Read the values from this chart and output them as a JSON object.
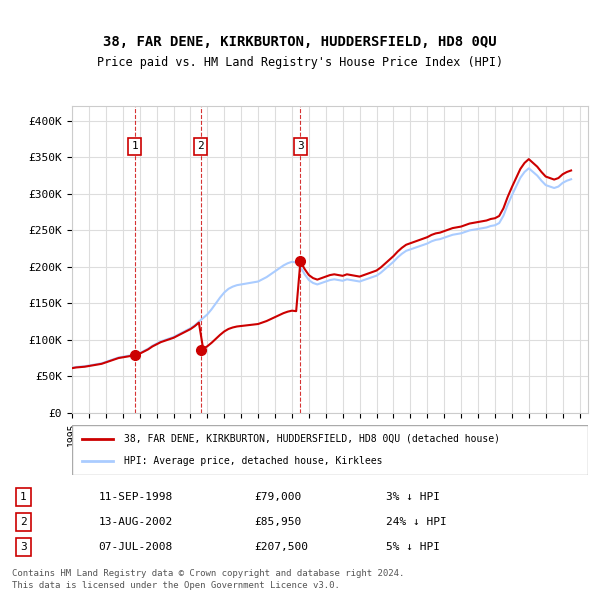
{
  "title_line1": "38, FAR DENE, KIRKBURTON, HUDDERSFIELD, HD8 0QU",
  "title_line2": "Price paid vs. HM Land Registry's House Price Index (HPI)",
  "ylabel": "",
  "background_color": "#ffffff",
  "plot_bg_color": "#ffffff",
  "grid_color": "#dddddd",
  "hpi_line_color": "#aaccff",
  "price_line_color": "#cc0000",
  "purchases": [
    {
      "label": "1",
      "date_str": "11-SEP-1998",
      "price": 79000,
      "hpi_pct": "3%",
      "year": 1998.7
    },
    {
      "label": "2",
      "date_str": "13-AUG-2002",
      "price": 85950,
      "hpi_pct": "24%",
      "year": 2002.6
    },
    {
      "label": "3",
      "date_str": "07-JUL-2008",
      "price": 207500,
      "hpi_pct": "5%",
      "year": 2008.5
    }
  ],
  "legend_label1": "38, FAR DENE, KIRKBURTON, HUDDERSFIELD, HD8 0QU (detached house)",
  "legend_label2": "HPI: Average price, detached house, Kirklees",
  "footer1": "Contains HM Land Registry data © Crown copyright and database right 2024.",
  "footer2": "This data is licensed under the Open Government Licence v3.0.",
  "ylim": [
    0,
    420000
  ],
  "yticks": [
    0,
    50000,
    100000,
    150000,
    200000,
    250000,
    300000,
    350000,
    400000
  ],
  "ytick_labels": [
    "£0",
    "£50K",
    "£100K",
    "£150K",
    "£200K",
    "£250K",
    "£300K",
    "£350K",
    "£400K"
  ],
  "hpi_data": {
    "years": [
      1995.0,
      1995.25,
      1995.5,
      1995.75,
      1996.0,
      1996.25,
      1996.5,
      1996.75,
      1997.0,
      1997.25,
      1997.5,
      1997.75,
      1998.0,
      1998.25,
      1998.5,
      1998.75,
      1999.0,
      1999.25,
      1999.5,
      1999.75,
      2000.0,
      2000.25,
      2000.5,
      2000.75,
      2001.0,
      2001.25,
      2001.5,
      2001.75,
      2002.0,
      2002.25,
      2002.5,
      2002.75,
      2003.0,
      2003.25,
      2003.5,
      2003.75,
      2004.0,
      2004.25,
      2004.5,
      2004.75,
      2005.0,
      2005.25,
      2005.5,
      2005.75,
      2006.0,
      2006.25,
      2006.5,
      2006.75,
      2007.0,
      2007.25,
      2007.5,
      2007.75,
      2008.0,
      2008.25,
      2008.5,
      2008.75,
      2009.0,
      2009.25,
      2009.5,
      2009.75,
      2010.0,
      2010.25,
      2010.5,
      2010.75,
      2011.0,
      2011.25,
      2011.5,
      2011.75,
      2012.0,
      2012.25,
      2012.5,
      2012.75,
      2013.0,
      2013.25,
      2013.5,
      2013.75,
      2014.0,
      2014.25,
      2014.5,
      2014.75,
      2015.0,
      2015.25,
      2015.5,
      2015.75,
      2016.0,
      2016.25,
      2016.5,
      2016.75,
      2017.0,
      2017.25,
      2017.5,
      2017.75,
      2018.0,
      2018.25,
      2018.5,
      2018.75,
      2019.0,
      2019.25,
      2019.5,
      2019.75,
      2020.0,
      2020.25,
      2020.5,
      2020.75,
      2021.0,
      2021.25,
      2021.5,
      2021.75,
      2022.0,
      2022.25,
      2022.5,
      2022.75,
      2023.0,
      2023.25,
      2023.5,
      2023.75,
      2024.0,
      2024.25,
      2024.5
    ],
    "values": [
      62000,
      63000,
      63500,
      64000,
      65000,
      66000,
      67000,
      68000,
      70000,
      72000,
      74000,
      76000,
      77000,
      78000,
      79000,
      80000,
      82000,
      85000,
      88000,
      92000,
      95000,
      98000,
      100000,
      102000,
      104000,
      107000,
      110000,
      113000,
      116000,
      120000,
      125000,
      130000,
      135000,
      142000,
      150000,
      158000,
      165000,
      170000,
      173000,
      175000,
      176000,
      177000,
      178000,
      179000,
      180000,
      183000,
      186000,
      190000,
      194000,
      198000,
      202000,
      205000,
      207000,
      206000,
      200000,
      190000,
      182000,
      178000,
      176000,
      178000,
      180000,
      182000,
      183000,
      182000,
      181000,
      183000,
      182000,
      181000,
      180000,
      182000,
      184000,
      186000,
      188000,
      192000,
      197000,
      202000,
      207000,
      213000,
      218000,
      222000,
      224000,
      226000,
      228000,
      230000,
      232000,
      235000,
      237000,
      238000,
      240000,
      242000,
      244000,
      245000,
      246000,
      248000,
      250000,
      251000,
      252000,
      253000,
      254000,
      256000,
      257000,
      260000,
      270000,
      285000,
      298000,
      310000,
      322000,
      330000,
      335000,
      330000,
      325000,
      318000,
      312000,
      310000,
      308000,
      310000,
      315000,
      318000,
      320000
    ]
  },
  "price_data": {
    "years": [
      1995.0,
      1998.7,
      1998.71,
      2002.6,
      2002.61,
      2008.5,
      2008.51,
      2024.5
    ],
    "values": [
      62000,
      76500,
      79000,
      81000,
      85950,
      195000,
      207500,
      320000
    ]
  }
}
